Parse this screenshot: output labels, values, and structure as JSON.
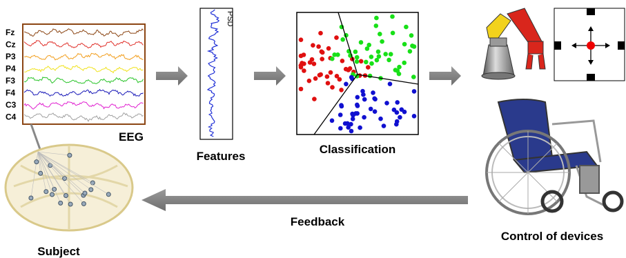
{
  "eeg": {
    "channels": [
      "Fz",
      "Cz",
      "P3",
      "P4",
      "F3",
      "F4",
      "C3",
      "C4"
    ],
    "label": "EEG"
  },
  "features": {
    "axis_label": "PSD",
    "label": "Features"
  },
  "classification": {
    "label": "Classification"
  },
  "devices": {
    "label": "Control of devices"
  },
  "feedback": {
    "label": "Feedback"
  },
  "subject": {
    "label": "Subject"
  }
}
